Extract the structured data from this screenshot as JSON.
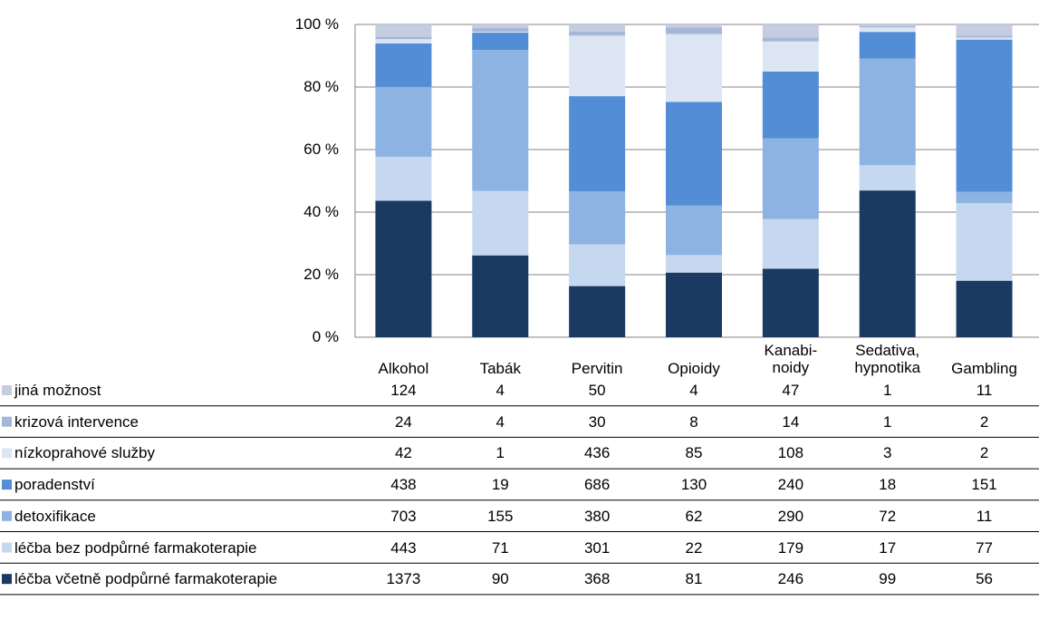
{
  "chart_data": {
    "type": "stacked_bar_100",
    "categories": [
      "Alkohol",
      "Tabák",
      "Pervitin",
      "Opioidy",
      "Kanabi-\nnoidy",
      "Sedativa,\nhypnotika",
      "Gambling"
    ],
    "series": [
      {
        "name": "jiná možnost",
        "color": "#c4cee0",
        "values": [
          124,
          4,
          50,
          4,
          47,
          1,
          11
        ]
      },
      {
        "name": "krizová intervence",
        "color": "#a5b7d8",
        "values": [
          24,
          4,
          30,
          8,
          14,
          1,
          2
        ]
      },
      {
        "name": "nízkoprahové služby",
        "color": "#dce6f3",
        "values": [
          42,
          1,
          436,
          85,
          108,
          3,
          2
        ]
      },
      {
        "name": "poradenství",
        "color": "#538dd5",
        "values": [
          438,
          19,
          686,
          130,
          240,
          18,
          151
        ]
      },
      {
        "name": "detoxifikace",
        "color": "#8db3e2",
        "values": [
          703,
          155,
          380,
          62,
          290,
          72,
          11
        ]
      },
      {
        "name": "léčba bez podpůrné farmakoterapie",
        "color": "#c6d8f0",
        "values": [
          443,
          71,
          301,
          22,
          179,
          17,
          77
        ]
      },
      {
        "name": "léčba včetně podpůrné farmakoterapie",
        "color": "#1b3a62",
        "values": [
          1373,
          90,
          368,
          81,
          246,
          99,
          56
        ]
      }
    ],
    "ylim": [
      0,
      100
    ],
    "yticks": [
      {
        "value": 0,
        "label": "0 %"
      },
      {
        "value": 20,
        "label": "20 %"
      },
      {
        "value": 40,
        "label": "40 %"
      },
      {
        "value": 60,
        "label": "60 %"
      },
      {
        "value": 80,
        "label": "80 %"
      },
      {
        "value": 100,
        "label": "100 %"
      }
    ],
    "grid": true
  }
}
